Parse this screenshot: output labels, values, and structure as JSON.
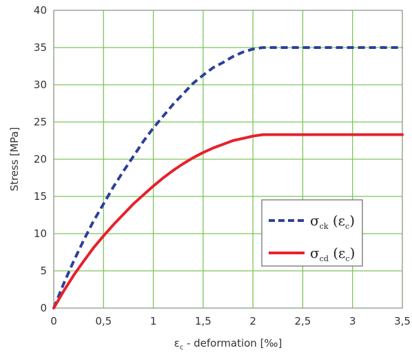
{
  "chart_data": {
    "type": "line",
    "title": "",
    "xlabel": {
      "symbol": "ε",
      "subscript": "c",
      "text": " - deformation [‰]"
    },
    "ylabel": "Stress  [MPa]",
    "xlim": [
      0,
      3.5
    ],
    "ylim": [
      0,
      40
    ],
    "xticks": [
      "0",
      "0,5",
      "1",
      "1,5",
      "2",
      "2,5",
      "3",
      "3,5"
    ],
    "yticks": [
      "0",
      "5",
      "10",
      "15",
      "20",
      "25",
      "30",
      "35",
      "40"
    ],
    "grid": true,
    "legend_position": "center-right",
    "series": [
      {
        "legend": {
          "symbol": "σ",
          "sub": "ck",
          "arg_open": " (",
          "arg_symbol": "ε",
          "arg_sub": "c",
          "arg_close": ")"
        },
        "color": "#2c3f9e",
        "style": "dashed",
        "x": [
          0,
          0.1,
          0.2,
          0.3,
          0.4,
          0.5,
          0.6,
          0.7,
          0.8,
          0.9,
          1.0,
          1.1,
          1.2,
          1.3,
          1.4,
          1.5,
          1.6,
          1.7,
          1.8,
          1.9,
          2.0,
          2.1,
          2.2,
          2.5,
          3.0,
          3.5
        ],
        "y": [
          0,
          3.3,
          6.3,
          9.1,
          11.7,
          14.0,
          16.3,
          18.4,
          20.4,
          22.4,
          24.2,
          25.8,
          27.4,
          28.8,
          30.2,
          31.3,
          32.3,
          33.0,
          33.8,
          34.4,
          34.8,
          35.0,
          35.0,
          35.0,
          35.0,
          35.0
        ]
      },
      {
        "legend": {
          "symbol": "σ",
          "sub": "cd",
          "arg_open": " (",
          "arg_symbol": "ε",
          "arg_sub": "c",
          "arg_close": ")"
        },
        "color": "#e8202a",
        "style": "solid",
        "x": [
          0,
          0.1,
          0.2,
          0.3,
          0.4,
          0.5,
          0.6,
          0.7,
          0.8,
          0.9,
          1.0,
          1.1,
          1.2,
          1.3,
          1.4,
          1.5,
          1.6,
          1.7,
          1.8,
          1.9,
          2.0,
          2.1,
          2.2,
          2.5,
          3.0,
          3.5
        ],
        "y": [
          0,
          2.3,
          4.4,
          6.3,
          8.1,
          9.7,
          11.2,
          12.6,
          14.0,
          15.2,
          16.4,
          17.5,
          18.5,
          19.4,
          20.2,
          20.9,
          21.5,
          22.0,
          22.5,
          22.8,
          23.1,
          23.3,
          23.3,
          23.3,
          23.3,
          23.3
        ]
      }
    ]
  }
}
